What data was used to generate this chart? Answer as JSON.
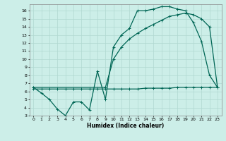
{
  "xlabel": "Humidex (Indice chaleur)",
  "xlim": [
    -0.5,
    23.5
  ],
  "ylim": [
    3,
    16.8
  ],
  "yticks": [
    3,
    4,
    5,
    6,
    7,
    8,
    9,
    10,
    11,
    12,
    13,
    14,
    15,
    16
  ],
  "xticks": [
    0,
    1,
    2,
    3,
    4,
    5,
    6,
    7,
    8,
    9,
    10,
    11,
    12,
    13,
    14,
    15,
    16,
    17,
    18,
    19,
    20,
    21,
    22,
    23
  ],
  "bg_color": "#cceee8",
  "grid_color": "#b0d8d0",
  "line_color": "#006655",
  "line1_x": [
    0,
    1,
    2,
    3,
    4,
    5,
    6,
    7,
    8,
    9,
    10,
    11,
    12,
    13,
    14,
    15,
    16,
    17,
    18,
    19,
    20,
    21,
    22,
    23
  ],
  "line1_y": [
    6.5,
    5.8,
    5.0,
    3.8,
    3.0,
    4.7,
    4.7,
    3.7,
    8.5,
    5.0,
    11.5,
    13.0,
    13.8,
    16.0,
    16.0,
    16.2,
    16.5,
    16.5,
    16.2,
    16.0,
    14.5,
    12.2,
    8.0,
    6.5
  ],
  "line2_x": [
    0,
    9,
    10,
    11,
    12,
    13,
    14,
    15,
    16,
    17,
    18,
    19,
    20,
    21,
    22,
    23
  ],
  "line2_y": [
    6.5,
    6.5,
    10.0,
    11.5,
    12.5,
    13.2,
    13.8,
    14.3,
    14.8,
    15.3,
    15.5,
    15.7,
    15.5,
    15.0,
    14.0,
    6.5
  ],
  "line3_x": [
    0,
    1,
    2,
    3,
    4,
    5,
    6,
    7,
    8,
    9,
    10,
    11,
    12,
    13,
    14,
    15,
    16,
    17,
    18,
    19,
    20,
    21,
    22,
    23
  ],
  "line3_y": [
    6.3,
    6.3,
    6.3,
    6.3,
    6.3,
    6.3,
    6.3,
    6.3,
    6.3,
    6.3,
    6.3,
    6.3,
    6.3,
    6.3,
    6.4,
    6.4,
    6.4,
    6.4,
    6.5,
    6.5,
    6.5,
    6.5,
    6.5,
    6.5
  ],
  "marker_size": 2.5,
  "linewidth": 0.9
}
